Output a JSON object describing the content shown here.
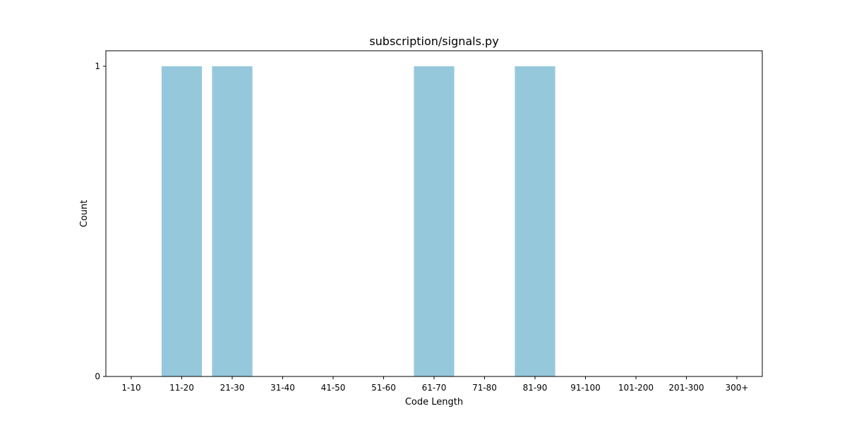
{
  "chart_data": {
    "type": "bar",
    "title": "subscription/signals.py",
    "xlabel": "Code Length",
    "ylabel": "Count",
    "categories": [
      "1-10",
      "11-20",
      "21-30",
      "31-40",
      "41-50",
      "51-60",
      "61-70",
      "71-80",
      "81-90",
      "91-100",
      "101-200",
      "201-300",
      "300+"
    ],
    "values": [
      0,
      1,
      1,
      0,
      0,
      0,
      1,
      0,
      1,
      0,
      0,
      0,
      0
    ],
    "ylim": [
      0,
      1.05
    ],
    "yticks": [
      0,
      1
    ],
    "grid": false,
    "bar_color": "#96c8dc"
  }
}
